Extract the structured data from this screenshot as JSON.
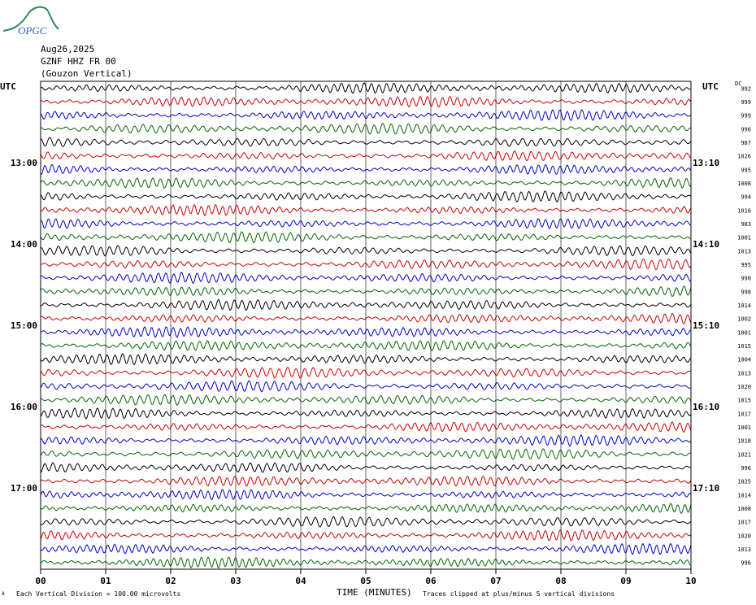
{
  "header": {
    "logo_text": "OPGC",
    "date": "Aug26,2025",
    "station": "GZNF HHZ FR 00",
    "location": "(Gouzon Vertical)"
  },
  "axis_labels": {
    "left_tz": "UTC",
    "right_tz": "UTC",
    "dc_header": "DC",
    "xlabel": "TIME (MINUTES)"
  },
  "footer": {
    "mark": "A",
    "scale_note": "Each Vertical Division = 100.00 microvolts",
    "clip_note": "Traces clipped at plus/minus 5 vertical divisions"
  },
  "colors": {
    "trace_cycle": [
      "#000000",
      "#cc0000",
      "#0000cc",
      "#006600"
    ],
    "grid": "#000000",
    "logo": "#2e8b57"
  },
  "chart_data": {
    "type": "line",
    "title": "",
    "x_ticks": [
      "00",
      "01",
      "02",
      "03",
      "04",
      "05",
      "06",
      "07",
      "08",
      "09",
      "10"
    ],
    "xlim": [
      0,
      10
    ],
    "left_time_labels": [
      {
        "row": 6,
        "label": "13:00"
      },
      {
        "row": 12,
        "label": "14:00"
      },
      {
        "row": 18,
        "label": "15:00"
      },
      {
        "row": 24,
        "label": "16:00"
      },
      {
        "row": 30,
        "label": "17:00"
      }
    ],
    "right_time_labels": [
      {
        "row": 6,
        "label": "13:10"
      },
      {
        "row": 12,
        "label": "14:10"
      },
      {
        "row": 18,
        "label": "15:10"
      },
      {
        "row": 24,
        "label": "16:10"
      },
      {
        "row": 30,
        "label": "17:10"
      }
    ],
    "dc_offsets": [
      "992",
      "999",
      "999",
      "996",
      "987",
      "1026",
      "995",
      "1008",
      "994",
      "1016",
      "983",
      "1001",
      "1013",
      "995",
      "990",
      "998",
      "1014",
      "1002",
      "1001",
      "1015",
      "1004",
      "1013",
      "1020",
      "1015",
      "1017",
      "1001",
      "1018",
      "1021",
      "996",
      "1025",
      "1014",
      "1008",
      "1017",
      "1020",
      "1013",
      "996"
    ],
    "trace_count": 36,
    "grid": true
  }
}
